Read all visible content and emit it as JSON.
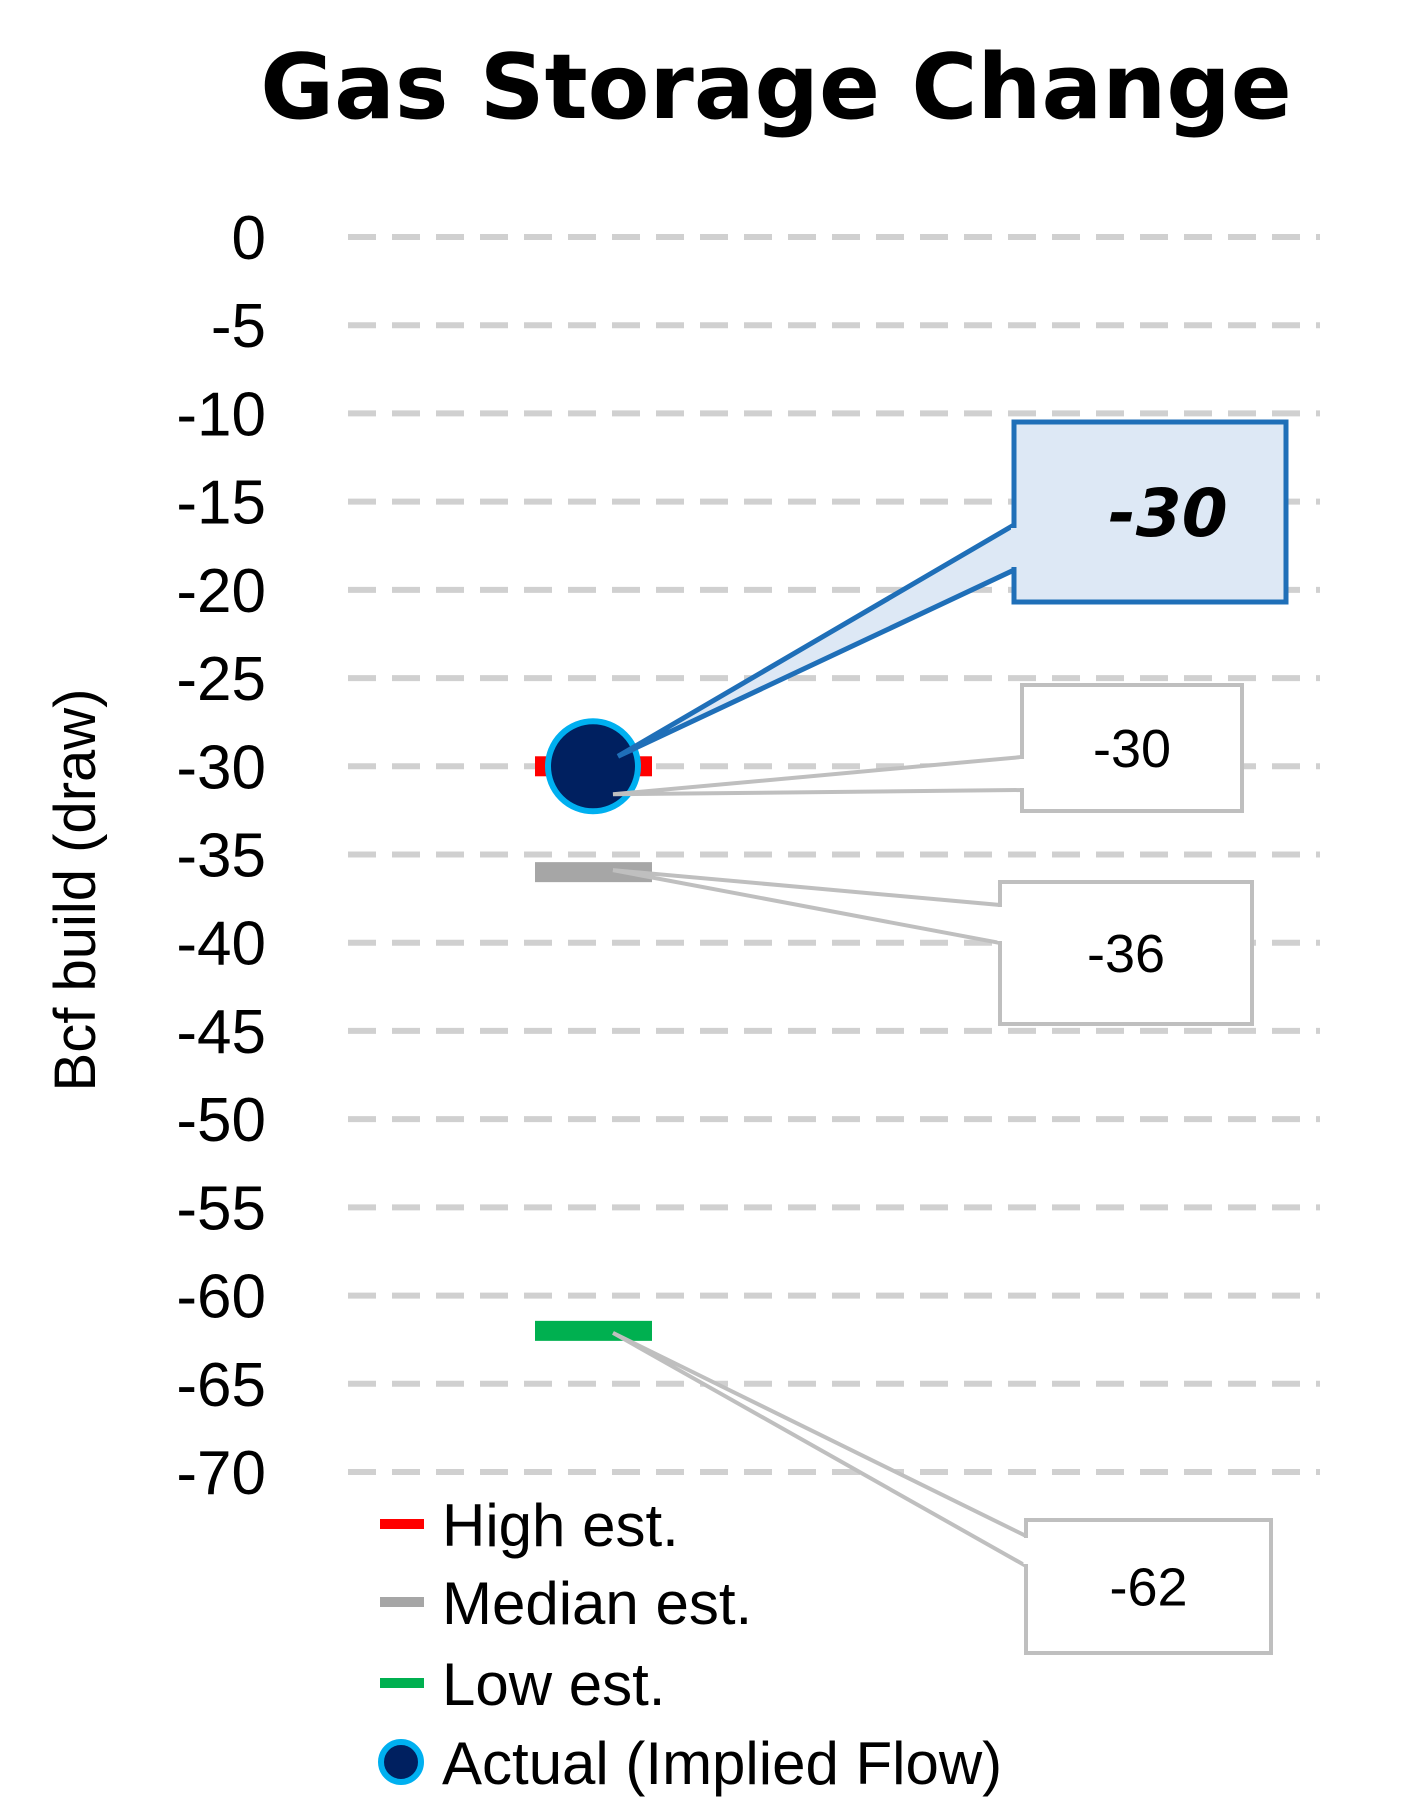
{
  "chart_data": {
    "type": "scatter",
    "title": "Gas Storage Change",
    "ylabel": "Bcf build (draw)",
    "ylim": [
      -70,
      0
    ],
    "yticks": [
      0,
      -5,
      -10,
      -15,
      -20,
      -25,
      -30,
      -35,
      -40,
      -45,
      -50,
      -55,
      -60,
      -65,
      -70
    ],
    "yticklabels": [
      "0",
      "-5",
      "-10",
      "-15",
      "-20",
      "-25",
      "-30",
      "-35",
      "-40",
      "-45",
      "-50",
      "-55",
      "-60",
      "-65",
      "-70"
    ],
    "grid": true,
    "series": [
      {
        "key": "high",
        "name": "High est.",
        "value": -30,
        "label": "-30",
        "color": "#ff0000",
        "marker": "dash"
      },
      {
        "key": "median",
        "name": "Median est.",
        "value": -36,
        "label": "-36",
        "color": "#a6a6a6",
        "marker": "dash"
      },
      {
        "key": "low",
        "name": "Low est.",
        "value": -62,
        "label": "-62",
        "color": "#00b050",
        "marker": "dash"
      },
      {
        "key": "actual",
        "name": "Actual (Implied Flow)",
        "value": -30,
        "label": "-30",
        "color": "#002060",
        "edge_color": "#00b0f0",
        "marker": "circle"
      }
    ],
    "legend_position": "bottom"
  }
}
